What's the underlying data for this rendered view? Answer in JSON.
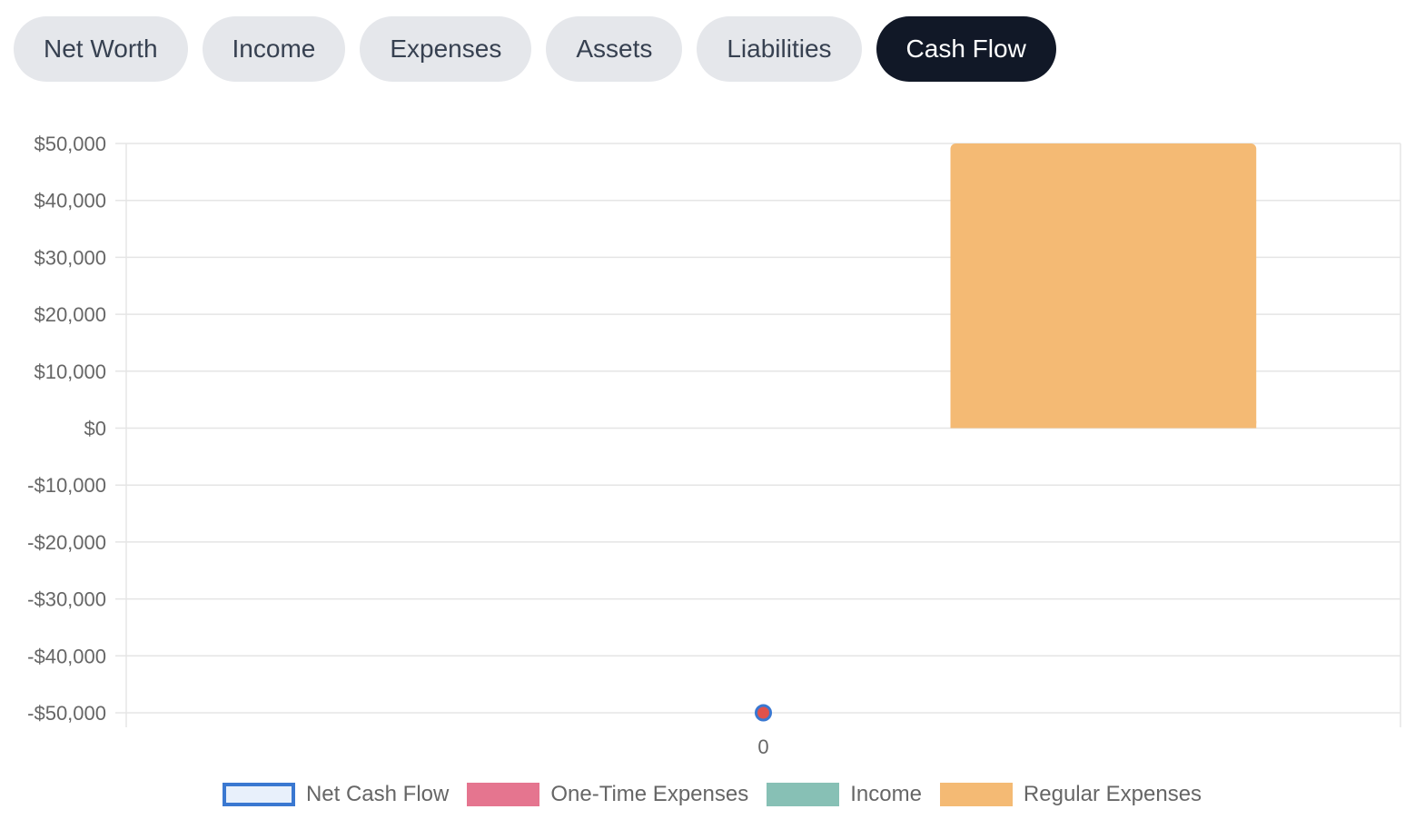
{
  "tabs": [
    {
      "label": "Net Worth",
      "active": false
    },
    {
      "label": "Income",
      "active": false
    },
    {
      "label": "Expenses",
      "active": false
    },
    {
      "label": "Assets",
      "active": false
    },
    {
      "label": "Liabilities",
      "active": false
    },
    {
      "label": "Cash Flow",
      "active": true
    }
  ],
  "colors": {
    "net_cash_flow_fill": "#e8f0fb",
    "net_cash_flow_border": "#3a78d1",
    "one_time_expenses": "#e5758f",
    "income": "#87c0b5",
    "regular_expenses": "#f4ba74",
    "point": "#e0524c",
    "grid": "#e5e5e5"
  },
  "chart_data": {
    "type": "bar",
    "categories": [
      "0"
    ],
    "ylim": [
      -50000,
      50000
    ],
    "yticks": [
      50000,
      40000,
      30000,
      20000,
      10000,
      0,
      -10000,
      -20000,
      -30000,
      -40000,
      -50000
    ],
    "ytick_labels": [
      "$50,000",
      "$40,000",
      "$30,000",
      "$20,000",
      "$10,000",
      "$0",
      "-$10,000",
      "-$20,000",
      "-$30,000",
      "-$40,000",
      "-$50,000"
    ],
    "series": [
      {
        "name": "Net Cash Flow",
        "type": "line",
        "values": [
          -50000
        ]
      },
      {
        "name": "One-Time Expenses",
        "type": "bar",
        "values": [
          0
        ]
      },
      {
        "name": "Income",
        "type": "bar",
        "values": [
          0
        ]
      },
      {
        "name": "Regular Expenses",
        "type": "bar",
        "values": [
          50000
        ]
      }
    ],
    "legend_position": "bottom",
    "grid": true
  }
}
